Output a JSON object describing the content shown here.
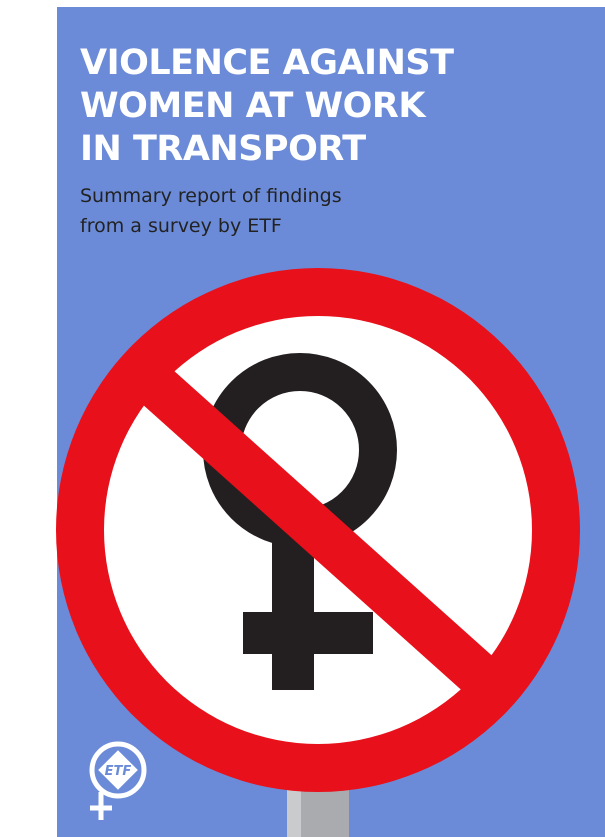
{
  "cover": {
    "title_lines": [
      "VIOLENCE AGAINST",
      "WOMEN AT WORK",
      "IN TRANSPORT"
    ],
    "subtitle_lines": [
      "Summary report of findings",
      "from a survey by ETF"
    ],
    "logo": {
      "text": "ETF"
    }
  }
}
